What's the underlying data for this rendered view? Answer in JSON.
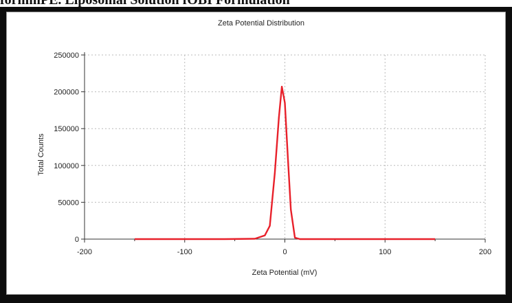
{
  "figure_caption": "formmPE. Liposomal Solution fOBI Formulation",
  "chart_data": {
    "type": "line",
    "title": "Zeta Potential Distribution",
    "xlabel": "Zeta Potential (mV)",
    "ylabel": "Total Counts",
    "xlim": [
      -200,
      200
    ],
    "ylim": [
      0,
      250000
    ],
    "xticks": [
      -200,
      -100,
      0,
      100,
      200
    ],
    "yticks": [
      0,
      50000,
      100000,
      150000,
      200000,
      250000
    ],
    "grid": true,
    "series": [
      {
        "color": "#e8202a",
        "x": [
          -150,
          -60,
          -30,
          -20,
          -15,
          -10,
          -6,
          -3,
          0,
          3,
          6,
          10,
          15,
          30,
          60,
          150
        ],
        "y": [
          0,
          0,
          500,
          5000,
          18000,
          90000,
          165000,
          207000,
          185000,
          110000,
          40000,
          2000,
          0,
          0,
          0,
          0
        ]
      }
    ]
  }
}
